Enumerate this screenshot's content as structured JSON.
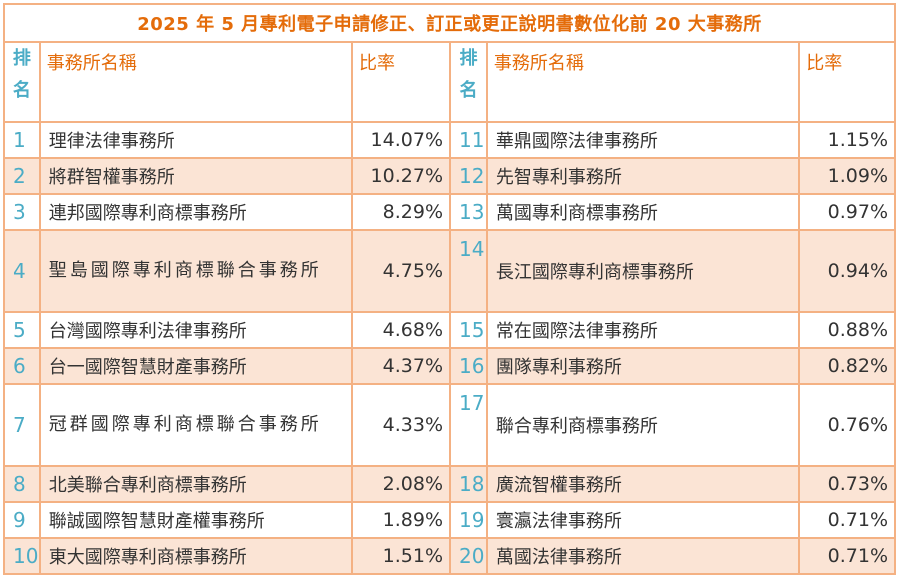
{
  "title": "2025 年 5 月專利電子申請修正、訂正或更正說明書數位化前 20 大事務所",
  "headers": {
    "rank_line1": "排",
    "rank_line2": "名",
    "name": "事務所名稱",
    "ratio": "比率"
  },
  "rows": [
    {
      "left": {
        "rank": "1",
        "name": "理律法律事務所",
        "ratio": "14.07%"
      },
      "right": {
        "rank": "11",
        "name": "華鼎國際法律事務所",
        "ratio": "1.15%"
      }
    },
    {
      "left": {
        "rank": "2",
        "name": "將群智權事務所",
        "ratio": "10.27%"
      },
      "right": {
        "rank": "12",
        "name": "先智專利事務所",
        "ratio": "1.09%"
      }
    },
    {
      "left": {
        "rank": "3",
        "name": "連邦國際專利商標事務所",
        "ratio": "8.29%"
      },
      "right": {
        "rank": "13",
        "name": "萬國專利商標事務所",
        "ratio": "0.97%"
      }
    },
    {
      "left": {
        "rank": "4",
        "name": "聖島國際專利商標聯合事務所",
        "ratio": "4.75%"
      },
      "right": {
        "rank": "14",
        "name": "長江國際專利商標事務所",
        "ratio": "0.94%"
      }
    },
    {
      "left": {
        "rank": "5",
        "name": "台灣國際專利法律事務所",
        "ratio": "4.68%"
      },
      "right": {
        "rank": "15",
        "name": "常在國際法律事務所",
        "ratio": "0.88%"
      }
    },
    {
      "left": {
        "rank": "6",
        "name": "台一國際智慧財產事務所",
        "ratio": "4.37%"
      },
      "right": {
        "rank": "16",
        "name": "團隊專利事務所",
        "ratio": "0.82%"
      }
    },
    {
      "left": {
        "rank": "7",
        "name": "冠群國際專利商標聯合事務所",
        "ratio": "4.33%"
      },
      "right": {
        "rank": "17",
        "name": "聯合專利商標事務所",
        "ratio": "0.76%"
      }
    },
    {
      "left": {
        "rank": "8",
        "name": "北美聯合專利商標事務所",
        "ratio": "2.08%"
      },
      "right": {
        "rank": "18",
        "name": "廣流智權事務所",
        "ratio": "0.73%"
      }
    },
    {
      "left": {
        "rank": "9",
        "name": "聯誠國際智慧財產權事務所",
        "ratio": "1.89%"
      },
      "right": {
        "rank": "19",
        "name": "寰瀛法律事務所",
        "ratio": "0.71%"
      }
    },
    {
      "left": {
        "rank": "10",
        "name": "東大國際專利商標事務所",
        "ratio": "1.51%"
      },
      "right": {
        "rank": "20",
        "name": "萬國法律事務所",
        "ratio": "0.71%"
      }
    }
  ],
  "colors": {
    "title": "#e46c0a",
    "rank": "#4bacc6",
    "border": "#f4b183",
    "alt_row": "#fbe4d5"
  }
}
